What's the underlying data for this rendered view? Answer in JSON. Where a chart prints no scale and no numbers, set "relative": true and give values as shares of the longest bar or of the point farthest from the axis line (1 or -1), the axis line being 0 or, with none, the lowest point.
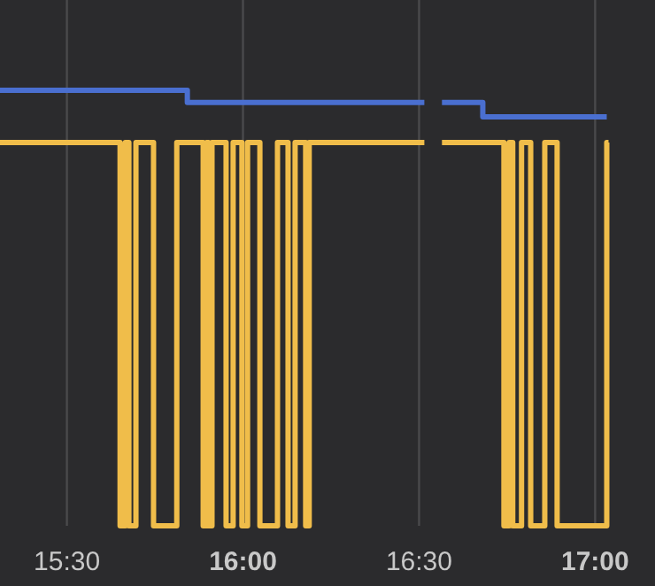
{
  "chart_data": {
    "type": "step",
    "relative": true,
    "grid": "x",
    "tick_labels": "x",
    "line_style": "solid",
    "xlim": [
      15.31,
      17.17
    ],
    "xticks": [
      {
        "value": 15.5,
        "label": "15:30"
      },
      {
        "value": 16,
        "label": "16:00"
      },
      {
        "value": 16.5,
        "label": "16:30"
      },
      {
        "value": 17,
        "label": "17:00"
      }
    ],
    "series": [
      {
        "color": "#4a6fd0",
        "x": [
          15.31,
          15.842,
          16.515,
          16.54,
          16.565,
          16.681,
          17.033
        ],
        "values": [
          1,
          0.972,
          0.972,
          null,
          0.972,
          0.939,
          0.939
        ]
      },
      {
        "color": "#f0bd4a",
        "x": [
          15.31,
          15.651,
          15.666,
          15.676,
          15.696,
          15.746,
          15.812,
          15.887,
          15.897,
          15.902,
          15.912,
          15.952,
          15.972,
          15.997,
          16.013,
          16.048,
          16.098,
          16.128,
          16.148,
          16.178,
          16.188,
          16.515,
          16.54,
          16.565,
          16.741,
          16.756,
          16.766,
          16.791,
          16.817,
          16.857,
          16.892,
          17.033,
          17.038
        ],
        "values": [
          0.88,
          0,
          0.88,
          0,
          0.88,
          0,
          0.88,
          0,
          0.88,
          0,
          0.88,
          0,
          0.88,
          0,
          0.88,
          0,
          0.88,
          0,
          0.88,
          0,
          0.88,
          0.88,
          null,
          0.88,
          0,
          0.88,
          0,
          0.88,
          0,
          0.88,
          0,
          0.88,
          0.88
        ]
      }
    ]
  }
}
